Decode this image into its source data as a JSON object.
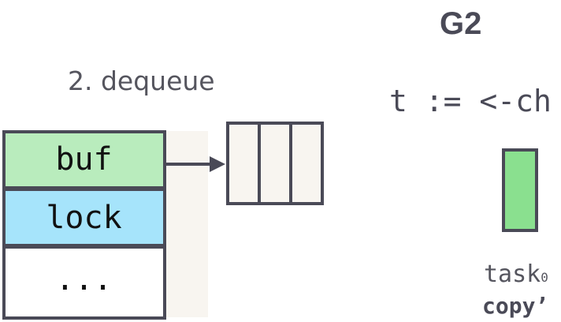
{
  "g2": {
    "title": "G2",
    "code": "t := <-ch",
    "task_label": "task",
    "task_subscript": "0",
    "copy_label": "copy’"
  },
  "step": {
    "label": "2. dequeue"
  },
  "hchan": {
    "fields": [
      "buf",
      "lock",
      "..."
    ]
  },
  "colors": {
    "outline": "#4a4a57",
    "buf_fill": "#b9ecbd",
    "lock_fill": "#a6e4fb",
    "rest_fill": "#ffffff",
    "shadow_fill": "#f8f5f0",
    "queue_fill": "#f8f5f0",
    "task_fill": "#8ae08f"
  }
}
